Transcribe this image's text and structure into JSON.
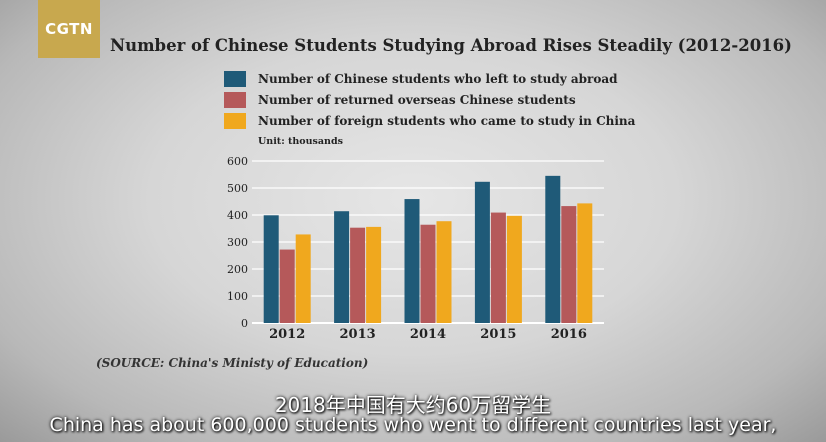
{
  "logo": {
    "text": "CGTN"
  },
  "chart_data": {
    "type": "bar",
    "title": "Number of Chinese Students Studying Abroad Rises Steadily (2012-2016)",
    "unit_label": "Unit: thousands",
    "categories": [
      "2012",
      "2013",
      "2014",
      "2015",
      "2016"
    ],
    "series": [
      {
        "name": "Number of Chinese students who left to study abroad",
        "color": "#1f5a78",
        "values": [
          399,
          414,
          459,
          523,
          545
        ]
      },
      {
        "name": "Number of returned overseas Chinese students",
        "color": "#b5595a",
        "values": [
          272,
          353,
          364,
          409,
          433
        ]
      },
      {
        "name": "Number of foreign students who came to study in China",
        "color": "#f0a81e",
        "values": [
          328,
          356,
          377,
          397,
          443
        ]
      }
    ],
    "ylim": [
      0,
      600
    ],
    "yticks": [
      0,
      100,
      200,
      300,
      400,
      500,
      600
    ],
    "grid": true,
    "legend_position": "top"
  },
  "source": "(SOURCE: China's Ministy of Education)",
  "subtitles": {
    "chinese": "2018年中国有大约60万留学生",
    "english": "China has about 600,000 students who went to different countries last year,"
  }
}
